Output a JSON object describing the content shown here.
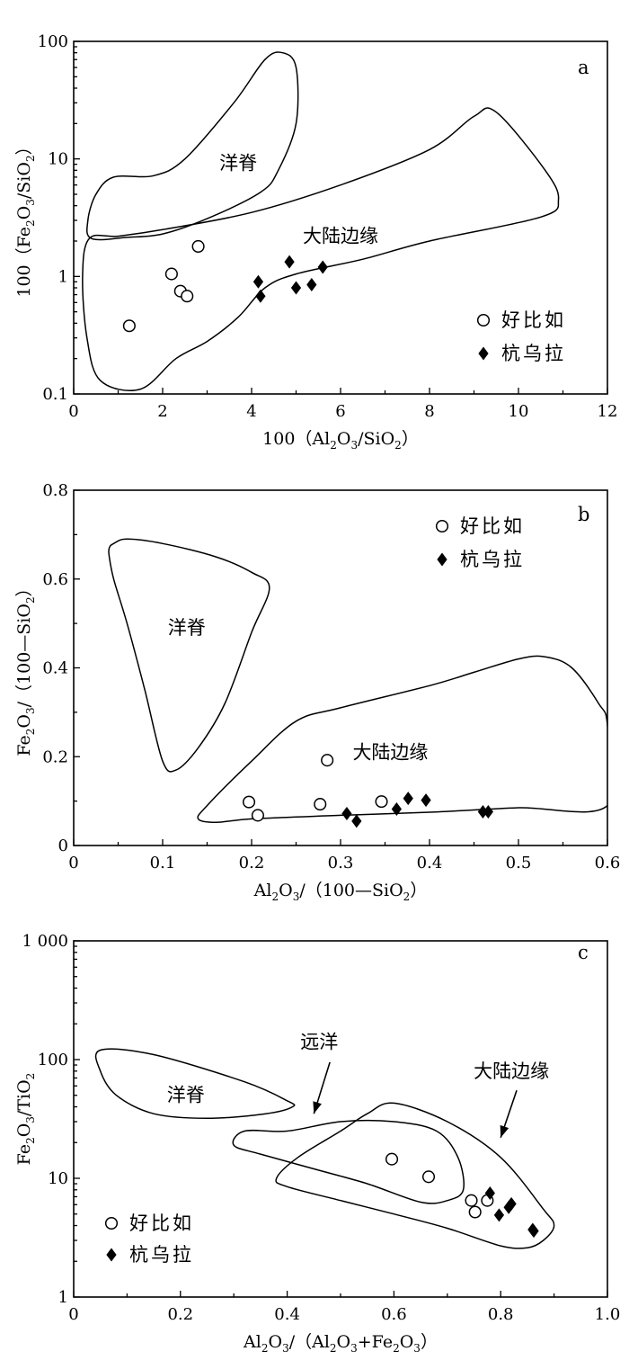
{
  "chart_data": [
    {
      "id": "a",
      "type": "scatter",
      "panel_label": "a",
      "xlabel_parts": [
        "100（Al",
        "2",
        "O",
        "3",
        "/SiO",
        "2",
        "）"
      ],
      "ylabel_parts": [
        "100（Fe",
        "2",
        "O",
        "3",
        "/SiO",
        "2",
        "）"
      ],
      "xscale": "linear",
      "yscale": "log",
      "xlim": [
        0,
        12
      ],
      "ylim": [
        0.1,
        100
      ],
      "xticks": [
        {
          "v": 0,
          "label": "0"
        },
        {
          "v": 2,
          "label": "2"
        },
        {
          "v": 4,
          "label": "4"
        },
        {
          "v": 6,
          "label": "6"
        },
        {
          "v": 8,
          "label": "8"
        },
        {
          "v": 10,
          "label": "10"
        },
        {
          "v": 12,
          "label": "12"
        }
      ],
      "yticks": [
        {
          "v": 0.1,
          "label": "0.1"
        },
        {
          "v": 1,
          "label": "1"
        },
        {
          "v": 10,
          "label": "10"
        },
        {
          "v": 100,
          "label": "100"
        }
      ],
      "regions": [
        {
          "name": "洋脊",
          "label_at": [
            3.7,
            9.2
          ],
          "boundary": [
            [
              0.4,
              2.1
            ],
            [
              0.32,
              3
            ],
            [
              0.5,
              5
            ],
            [
              0.9,
              7
            ],
            [
              1.8,
              7.2
            ],
            [
              2.5,
              10
            ],
            [
              3.6,
              30
            ],
            [
              4.3,
              70
            ],
            [
              4.7,
              80
            ],
            [
              5.0,
              60
            ],
            [
              5.0,
              20
            ],
            [
              4.6,
              8
            ],
            [
              4.2,
              5.2
            ],
            [
              3,
              3.1
            ],
            [
              2,
              2.3
            ],
            [
              1.2,
              2.15
            ]
          ]
        },
        {
          "name": "大陆边缘",
          "label_at": [
            6.0,
            2.2
          ],
          "boundary": [
            [
              0.35,
              2.1
            ],
            [
              0.2,
              1
            ],
            [
              0.3,
              0.3
            ],
            [
              0.6,
              0.13
            ],
            [
              1.5,
              0.11
            ],
            [
              2.3,
              0.2
            ],
            [
              3,
              0.28
            ],
            [
              3.7,
              0.45
            ],
            [
              4.3,
              0.8
            ],
            [
              5,
              1.05
            ],
            [
              6.5,
              1.4
            ],
            [
              8,
              2
            ],
            [
              10.5,
              3.2
            ],
            [
              10.9,
              4.5
            ],
            [
              10.6,
              8
            ],
            [
              9.5,
              25
            ],
            [
              9.0,
              23
            ],
            [
              8,
              12
            ],
            [
              6,
              6
            ],
            [
              4,
              3.5
            ],
            [
              2,
              2.5
            ],
            [
              1,
              2.2
            ]
          ]
        }
      ],
      "series": [
        {
          "name": "好比如",
          "marker": "open-circle",
          "points": [
            [
              1.25,
              0.38
            ],
            [
              2.2,
              1.05
            ],
            [
              2.4,
              0.75
            ],
            [
              2.55,
              0.68
            ],
            [
              2.8,
              1.8
            ]
          ]
        },
        {
          "name": "杭乌拉",
          "marker": "filled-diamond",
          "points": [
            [
              4.15,
              0.9
            ],
            [
              4.2,
              0.68
            ],
            [
              4.85,
              1.33
            ],
            [
              5.0,
              0.8
            ],
            [
              5.35,
              0.85
            ],
            [
              5.6,
              1.2
            ]
          ]
        }
      ],
      "legend": [
        {
          "name": "好比如",
          "marker": "open-circle"
        },
        {
          "name": "杭乌拉",
          "marker": "filled-diamond"
        }
      ],
      "legend_location": "bottom-right"
    },
    {
      "id": "b",
      "type": "scatter",
      "panel_label": "b",
      "xlabel_parts": [
        "Al",
        "2",
        "O",
        "3",
        "/（100—SiO",
        "2",
        "）"
      ],
      "ylabel_parts": [
        "Fe",
        "2",
        "O",
        "3",
        "/（100—SiO",
        "2",
        "）"
      ],
      "xscale": "linear",
      "yscale": "linear",
      "xlim": [
        0,
        0.6
      ],
      "ylim": [
        0,
        0.8
      ],
      "xticks": [
        {
          "v": 0,
          "label": "0"
        },
        {
          "v": 0.1,
          "label": "0.1"
        },
        {
          "v": 0.2,
          "label": "0.2"
        },
        {
          "v": 0.3,
          "label": "0.3"
        },
        {
          "v": 0.4,
          "label": "0.4"
        },
        {
          "v": 0.5,
          "label": "0.5"
        },
        {
          "v": 0.6,
          "label": "0.6"
        }
      ],
      "yticks": [
        {
          "v": 0,
          "label": "0"
        },
        {
          "v": 0.2,
          "label": "0.2"
        },
        {
          "v": 0.4,
          "label": "0.4"
        },
        {
          "v": 0.6,
          "label": "0.6"
        },
        {
          "v": 0.8,
          "label": "0.8"
        }
      ],
      "regions": [
        {
          "name": "洋脊",
          "label_at": [
            0.127,
            0.49
          ],
          "boundary": [
            [
              0.04,
              0.67
            ],
            [
              0.045,
              0.68
            ],
            [
              0.06,
              0.69
            ],
            [
              0.1,
              0.68
            ],
            [
              0.16,
              0.65
            ],
            [
              0.2,
              0.615
            ],
            [
              0.22,
              0.58
            ],
            [
              0.2,
              0.48
            ],
            [
              0.17,
              0.32
            ],
            [
              0.14,
              0.22
            ],
            [
              0.115,
              0.17
            ],
            [
              0.1,
              0.19
            ],
            [
              0.08,
              0.35
            ],
            [
              0.06,
              0.5
            ],
            [
              0.045,
              0.6
            ],
            [
              0.04,
              0.65
            ]
          ]
        },
        {
          "name": "大陆边缘",
          "label_at": [
            0.356,
            0.21
          ],
          "boundary": [
            [
              0.14,
              0.06
            ],
            [
              0.15,
              0.09
            ],
            [
              0.2,
              0.19
            ],
            [
              0.25,
              0.28
            ],
            [
              0.3,
              0.31
            ],
            [
              0.4,
              0.36
            ],
            [
              0.45,
              0.39
            ],
            [
              0.5,
              0.42
            ],
            [
              0.53,
              0.425
            ],
            [
              0.56,
              0.4
            ],
            [
              0.59,
              0.32
            ],
            [
              0.6,
              0.27
            ],
            [
              0.6,
              0.09
            ],
            [
              0.5,
              0.085
            ],
            [
              0.4,
              0.075
            ],
            [
              0.3,
              0.068
            ],
            [
              0.2,
              0.06
            ],
            [
              0.16,
              0.052
            ]
          ]
        }
      ],
      "series": [
        {
          "name": "好比如",
          "marker": "open-circle",
          "points": [
            [
              0.197,
              0.098
            ],
            [
              0.207,
              0.068
            ],
            [
              0.277,
              0.093
            ],
            [
              0.285,
              0.192
            ],
            [
              0.346,
              0.099
            ]
          ]
        },
        {
          "name": "杭乌拉",
          "marker": "filled-diamond",
          "points": [
            [
              0.307,
              0.072
            ],
            [
              0.318,
              0.055
            ],
            [
              0.363,
              0.082
            ],
            [
              0.376,
              0.106
            ],
            [
              0.396,
              0.102
            ],
            [
              0.46,
              0.076
            ],
            [
              0.466,
              0.076
            ]
          ]
        }
      ],
      "legend": [
        {
          "name": "好比如",
          "marker": "open-circle"
        },
        {
          "name": "杭乌拉",
          "marker": "filled-diamond"
        }
      ],
      "legend_location": "top-right"
    },
    {
      "id": "c",
      "type": "scatter",
      "panel_label": "c",
      "xlabel_parts": [
        "Al",
        "2",
        "O",
        "3",
        "/（Al",
        "2",
        "O",
        "3",
        "+Fe",
        "2",
        "O",
        "3",
        "）"
      ],
      "ylabel_parts": [
        "Fe",
        "2",
        "O",
        "3",
        "/TiO",
        "2"
      ],
      "xscale": "linear",
      "yscale": "log",
      "xlim": [
        0,
        1.0
      ],
      "ylim": [
        1,
        1000
      ],
      "xticks": [
        {
          "v": 0,
          "label": "0"
        },
        {
          "v": 0.2,
          "label": "0.2"
        },
        {
          "v": 0.4,
          "label": "0.4"
        },
        {
          "v": 0.6,
          "label": "0.6"
        },
        {
          "v": 0.8,
          "label": "0.8"
        },
        {
          "v": 1.0,
          "label": "1.0"
        }
      ],
      "yticks": [
        {
          "v": 1,
          "label": "1"
        },
        {
          "v": 10,
          "label": "10"
        },
        {
          "v": 100,
          "label": "100"
        },
        {
          "v": 1000,
          "label": "1 000"
        }
      ],
      "regions": [
        {
          "name": "洋脊",
          "label_at": [
            0.21,
            50
          ],
          "boundary": [
            [
              0.05,
              120
            ],
            [
              0.15,
              110
            ],
            [
              0.32,
              65
            ],
            [
              0.4,
              45
            ],
            [
              0.41,
              40
            ],
            [
              0.36,
              35
            ],
            [
              0.25,
              32
            ],
            [
              0.15,
              35
            ],
            [
              0.08,
              50
            ],
            [
              0.05,
              80
            ]
          ]
        },
        {
          "name": "远洋",
          "label_at": [
            0.46,
            140
          ],
          "arrow": [
            [
              0.48,
              95
            ],
            [
              0.45,
              35
            ]
          ],
          "boundary": [
            [
              0.4,
              25
            ],
            [
              0.5,
              30
            ],
            [
              0.6,
              30
            ],
            [
              0.68,
              25
            ],
            [
              0.72,
              15
            ],
            [
              0.73,
              8
            ],
            [
              0.7,
              6.5
            ],
            [
              0.65,
              6.3
            ],
            [
              0.55,
              9
            ],
            [
              0.45,
              12
            ],
            [
              0.35,
              16
            ],
            [
              0.3,
              19
            ],
            [
              0.32,
              25
            ]
          ]
        },
        {
          "name": "大陆边缘",
          "label_at": [
            0.82,
            80
          ],
          "arrow": [
            [
              0.83,
              55
            ],
            [
              0.8,
              22
            ]
          ],
          "boundary": [
            [
              0.6,
              43
            ],
            [
              0.7,
              30
            ],
            [
              0.8,
              15
            ],
            [
              0.88,
              5.5
            ],
            [
              0.9,
              4
            ],
            [
              0.88,
              3
            ],
            [
              0.85,
              2.6
            ],
            [
              0.8,
              2.7
            ],
            [
              0.7,
              3.8
            ],
            [
              0.6,
              5
            ],
            [
              0.5,
              6.5
            ],
            [
              0.4,
              8.5
            ],
            [
              0.38,
              10
            ],
            [
              0.42,
              15
            ],
            [
              0.5,
              25
            ],
            [
              0.55,
              35
            ]
          ]
        }
      ],
      "series": [
        {
          "name": "好比如",
          "marker": "open-circle",
          "points": [
            [
              0.596,
              14.5
            ],
            [
              0.665,
              10.3
            ],
            [
              0.745,
              6.5
            ],
            [
              0.752,
              5.2
            ],
            [
              0.775,
              6.5
            ]
          ]
        },
        {
          "name": "杭乌拉",
          "marker": "filled-diamond",
          "points": [
            [
              0.78,
              7.5
            ],
            [
              0.797,
              4.9
            ],
            [
              0.815,
              5.7
            ],
            [
              0.82,
              6.1
            ],
            [
              0.86,
              3.7
            ],
            [
              0.862,
              3.6
            ]
          ]
        }
      ],
      "legend": [
        {
          "name": "好比如",
          "marker": "open-circle"
        },
        {
          "name": "杭乌拉",
          "marker": "filled-diamond"
        }
      ],
      "legend_location": "bottom-left"
    }
  ]
}
